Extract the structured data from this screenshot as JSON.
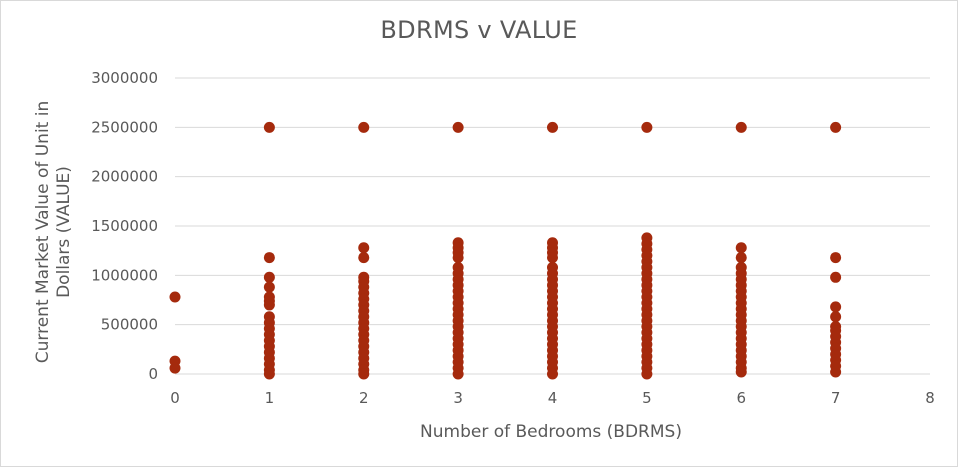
{
  "chart_data": {
    "type": "scatter",
    "title": "BDRMS v VALUE",
    "xlabel": "Number of Bedrooms (BDRMS)",
    "ylabel_lines": [
      "Current Market Value of Unit in",
      "Dollars (VALUE)"
    ],
    "xlim": [
      0,
      8
    ],
    "ylim": [
      0,
      3000000
    ],
    "x_ticks": [
      0,
      1,
      2,
      3,
      4,
      5,
      6,
      7,
      8
    ],
    "y_ticks": [
      0,
      500000,
      1000000,
      1500000,
      2000000,
      2500000,
      3000000
    ],
    "grid": "horizontal",
    "marker_color": "#A52A0D",
    "series": [
      {
        "points": [
          [
            0,
            780000
          ],
          [
            0,
            130000
          ],
          [
            0,
            60000
          ],
          [
            1,
            2500000
          ],
          [
            1,
            1180000
          ],
          [
            1,
            980000
          ],
          [
            1,
            880000
          ],
          [
            1,
            780000
          ],
          [
            1,
            740000
          ],
          [
            1,
            700000
          ],
          [
            1,
            580000
          ],
          [
            1,
            520000
          ],
          [
            1,
            460000
          ],
          [
            1,
            400000
          ],
          [
            1,
            340000
          ],
          [
            1,
            280000
          ],
          [
            1,
            220000
          ],
          [
            1,
            160000
          ],
          [
            1,
            100000
          ],
          [
            1,
            40000
          ],
          [
            1,
            0
          ],
          [
            2,
            2500000
          ],
          [
            2,
            1280000
          ],
          [
            2,
            1180000
          ],
          [
            2,
            980000
          ],
          [
            2,
            940000
          ],
          [
            2,
            880000
          ],
          [
            2,
            820000
          ],
          [
            2,
            760000
          ],
          [
            2,
            700000
          ],
          [
            2,
            640000
          ],
          [
            2,
            580000
          ],
          [
            2,
            520000
          ],
          [
            2,
            460000
          ],
          [
            2,
            400000
          ],
          [
            2,
            340000
          ],
          [
            2,
            280000
          ],
          [
            2,
            220000
          ],
          [
            2,
            160000
          ],
          [
            2,
            100000
          ],
          [
            2,
            40000
          ],
          [
            2,
            0
          ],
          [
            3,
            2500000
          ],
          [
            3,
            1330000
          ],
          [
            3,
            1280000
          ],
          [
            3,
            1230000
          ],
          [
            3,
            1180000
          ],
          [
            3,
            1080000
          ],
          [
            3,
            1020000
          ],
          [
            3,
            960000
          ],
          [
            3,
            900000
          ],
          [
            3,
            840000
          ],
          [
            3,
            780000
          ],
          [
            3,
            720000
          ],
          [
            3,
            660000
          ],
          [
            3,
            600000
          ],
          [
            3,
            540000
          ],
          [
            3,
            480000
          ],
          [
            3,
            420000
          ],
          [
            3,
            360000
          ],
          [
            3,
            300000
          ],
          [
            3,
            240000
          ],
          [
            3,
            180000
          ],
          [
            3,
            120000
          ],
          [
            3,
            60000
          ],
          [
            3,
            0
          ],
          [
            4,
            2500000
          ],
          [
            4,
            1330000
          ],
          [
            4,
            1280000
          ],
          [
            4,
            1230000
          ],
          [
            4,
            1180000
          ],
          [
            4,
            1080000
          ],
          [
            4,
            1020000
          ],
          [
            4,
            960000
          ],
          [
            4,
            900000
          ],
          [
            4,
            840000
          ],
          [
            4,
            780000
          ],
          [
            4,
            720000
          ],
          [
            4,
            660000
          ],
          [
            4,
            600000
          ],
          [
            4,
            540000
          ],
          [
            4,
            480000
          ],
          [
            4,
            420000
          ],
          [
            4,
            360000
          ],
          [
            4,
            300000
          ],
          [
            4,
            240000
          ],
          [
            4,
            180000
          ],
          [
            4,
            120000
          ],
          [
            4,
            60000
          ],
          [
            4,
            0
          ],
          [
            5,
            2500000
          ],
          [
            5,
            1380000
          ],
          [
            5,
            1320000
          ],
          [
            5,
            1260000
          ],
          [
            5,
            1200000
          ],
          [
            5,
            1140000
          ],
          [
            5,
            1080000
          ],
          [
            5,
            1020000
          ],
          [
            5,
            960000
          ],
          [
            5,
            900000
          ],
          [
            5,
            840000
          ],
          [
            5,
            780000
          ],
          [
            5,
            720000
          ],
          [
            5,
            660000
          ],
          [
            5,
            600000
          ],
          [
            5,
            540000
          ],
          [
            5,
            480000
          ],
          [
            5,
            420000
          ],
          [
            5,
            360000
          ],
          [
            5,
            300000
          ],
          [
            5,
            240000
          ],
          [
            5,
            180000
          ],
          [
            5,
            120000
          ],
          [
            5,
            60000
          ],
          [
            5,
            0
          ],
          [
            6,
            2500000
          ],
          [
            6,
            1280000
          ],
          [
            6,
            1180000
          ],
          [
            6,
            1080000
          ],
          [
            6,
            1020000
          ],
          [
            6,
            960000
          ],
          [
            6,
            900000
          ],
          [
            6,
            840000
          ],
          [
            6,
            780000
          ],
          [
            6,
            720000
          ],
          [
            6,
            660000
          ],
          [
            6,
            600000
          ],
          [
            6,
            540000
          ],
          [
            6,
            480000
          ],
          [
            6,
            420000
          ],
          [
            6,
            360000
          ],
          [
            6,
            300000
          ],
          [
            6,
            240000
          ],
          [
            6,
            180000
          ],
          [
            6,
            120000
          ],
          [
            6,
            60000
          ],
          [
            6,
            20000
          ],
          [
            7,
            2500000
          ],
          [
            7,
            1180000
          ],
          [
            7,
            980000
          ],
          [
            7,
            680000
          ],
          [
            7,
            580000
          ],
          [
            7,
            480000
          ],
          [
            7,
            440000
          ],
          [
            7,
            380000
          ],
          [
            7,
            320000
          ],
          [
            7,
            260000
          ],
          [
            7,
            200000
          ],
          [
            7,
            140000
          ],
          [
            7,
            80000
          ],
          [
            7,
            20000
          ]
        ]
      }
    ]
  }
}
